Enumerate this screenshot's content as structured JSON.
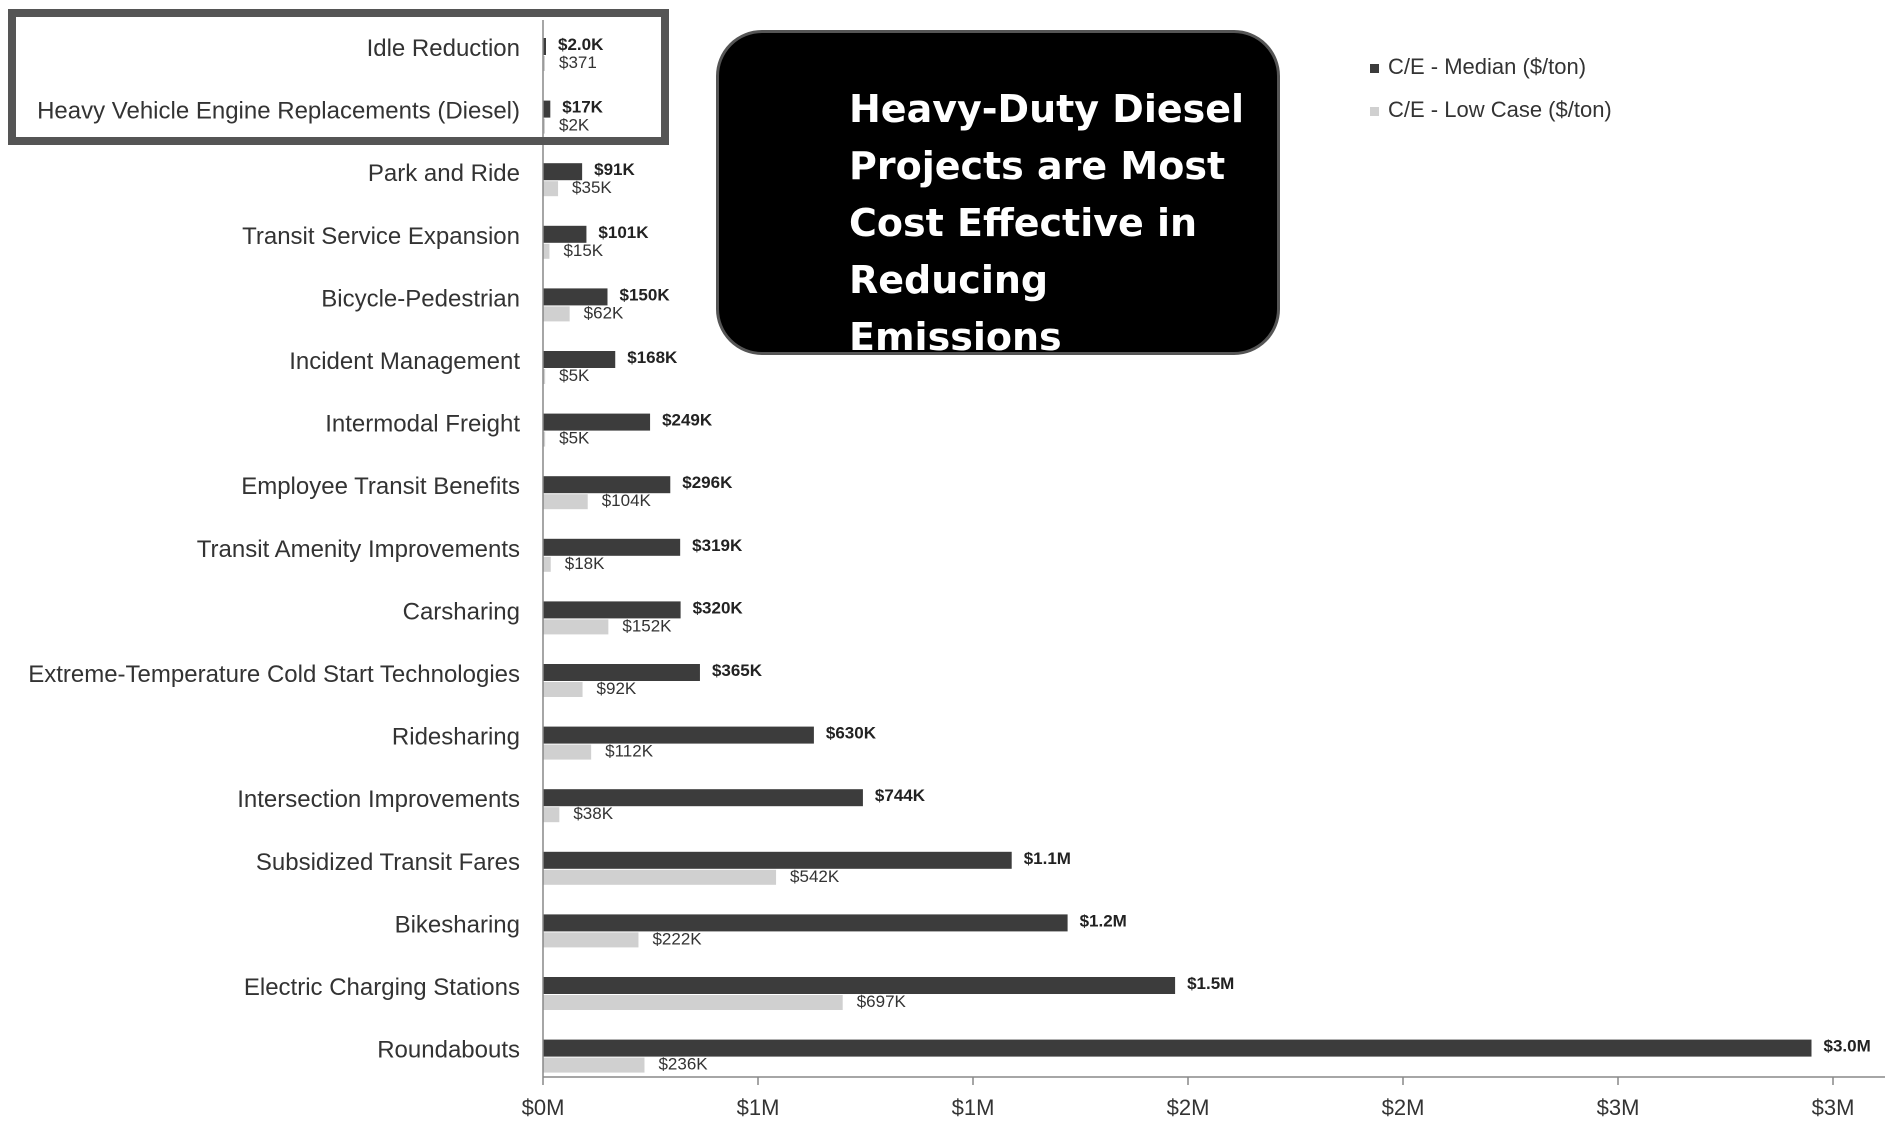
{
  "callout": {
    "text": "Heavy-Duty Diesel Projects are Most Cost Effective in Reducing Emissions"
  },
  "legend": {
    "items": [
      {
        "label": "C/E - Median ($/ton)",
        "color": "#3c3c3c"
      },
      {
        "label": "C/E - Low Case ($/ton)",
        "color": "#d0d0d0"
      }
    ]
  },
  "chart_data": {
    "type": "bar",
    "orientation": "horizontal",
    "categories": [
      "Idle Reduction",
      "Heavy Vehicle Engine Replacements (Diesel)",
      "Park and Ride",
      "Transit Service Expansion",
      "Bicycle-Pedestrian",
      "Incident Management",
      "Intermodal Freight",
      "Employee Transit Benefits",
      "Transit Amenity Improvements",
      "Carsharing",
      "Extreme-Temperature Cold Start Technologies",
      "Ridesharing",
      "Intersection Improvements",
      "Subsidized Transit Fares",
      "Bikesharing",
      "Electric Charging Stations",
      "Roundabouts"
    ],
    "series": [
      {
        "name": "C/E - Median ($/ton)",
        "color": "#3c3c3c",
        "values": [
          2000,
          17000,
          91000,
          101000,
          150000,
          168000,
          249000,
          296000,
          319000,
          320000,
          365000,
          630000,
          744000,
          1090000,
          1220000,
          1470000,
          2950000
        ],
        "labels": [
          "$2.0K",
          "$17K",
          "$91K",
          "$101K",
          "$150K",
          "$168K",
          "$249K",
          "$296K",
          "$319K",
          "$320K",
          "$365K",
          "$630K",
          "$744K",
          "$1.1M",
          "$1.2M",
          "$1.5M",
          "$3.0M"
        ]
      },
      {
        "name": "C/E - Low Case ($/ton)",
        "color": "#d0d0d0",
        "values": [
          371,
          2000,
          35000,
          15000,
          62000,
          5000,
          5000,
          104000,
          18000,
          152000,
          92000,
          112000,
          38000,
          542000,
          222000,
          697000,
          236000
        ],
        "labels": [
          "$371",
          "$2K",
          "$35K",
          "$15K",
          "$62K",
          "$5K",
          "$5K",
          "$104K",
          "$18K",
          "$152K",
          "$92K",
          "$112K",
          "$38K",
          "$542K",
          "$222K",
          "$697K",
          "$236K"
        ]
      }
    ],
    "x_ticks": [
      {
        "value": 0,
        "label": "$0M"
      },
      {
        "value": 500000,
        "label": "$1M"
      },
      {
        "value": 1000000,
        "label": "$1M"
      },
      {
        "value": 1500000,
        "label": "$2M"
      },
      {
        "value": 2000000,
        "label": "$2M"
      },
      {
        "value": 2500000,
        "label": "$3M"
      },
      {
        "value": 3000000,
        "label": "$3M"
      }
    ],
    "xlim": [
      0,
      3000000
    ],
    "xlabel": "",
    "ylabel": "",
    "grid": false,
    "legend_position": "top-right",
    "highlighted_categories": [
      "Idle Reduction",
      "Heavy Vehicle Engine Replacements (Diesel)"
    ]
  }
}
